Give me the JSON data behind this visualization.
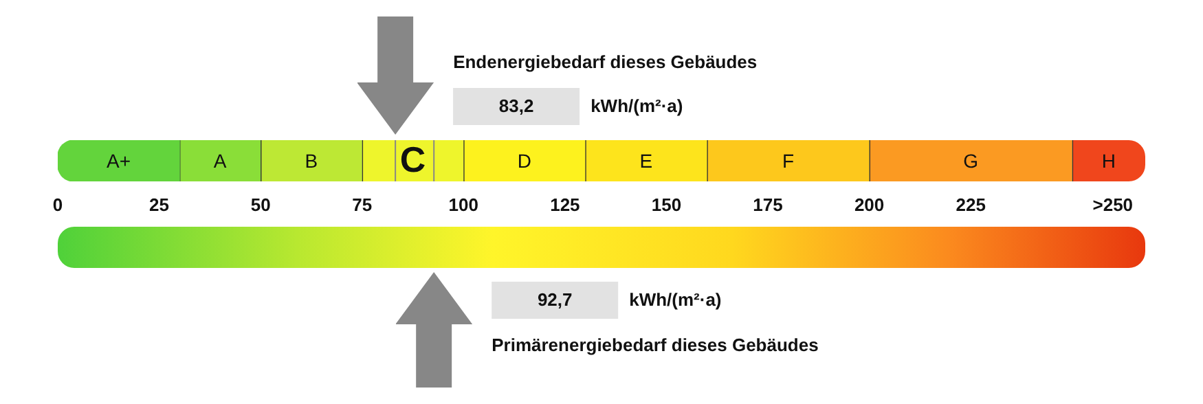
{
  "chart_data": {
    "type": "bar",
    "orientation": "horizontal",
    "stacked": true,
    "categories": [
      null
    ],
    "xlim": [
      0,
      268
    ],
    "xticks": [
      0,
      25,
      50,
      75,
      100,
      125,
      150,
      175,
      200,
      225,
      {
        "value": 260,
        "label": ">250"
      }
    ],
    "series": [
      {
        "name": "A+",
        "color": "#63d43c",
        "values": [
          30
        ]
      },
      {
        "name": "A",
        "color": "#8ade38",
        "values": [
          20
        ]
      },
      {
        "name": "B",
        "color": "#bde834",
        "values": [
          25
        ]
      },
      {
        "name": "C",
        "color": "#eef52c",
        "values": [
          25
        ]
      },
      {
        "name": "D",
        "color": "#fdf21e",
        "values": [
          30
        ]
      },
      {
        "name": "E",
        "color": "#fde41c",
        "values": [
          30
        ]
      },
      {
        "name": "F",
        "color": "#fdc81c",
        "values": [
          40
        ]
      },
      {
        "name": "G",
        "color": "#fb9a22",
        "values": [
          50
        ]
      },
      {
        "name": "H",
        "color": "#f0461c",
        "values": [
          18
        ]
      }
    ],
    "ref_lines": [
      {
        "axis": "x",
        "value": 83.2,
        "color": "#878787"
      },
      {
        "axis": "x",
        "value": 92.7,
        "color": "#878787"
      }
    ],
    "annotations": [
      "Endenergiebedarf dieses Gebäudes",
      "83,2",
      "kWh/(m²·a)",
      "Primärenergiebedarf dieses Gebäudes",
      "92,7",
      "kWh/(m²·a)"
    ]
  }
}
